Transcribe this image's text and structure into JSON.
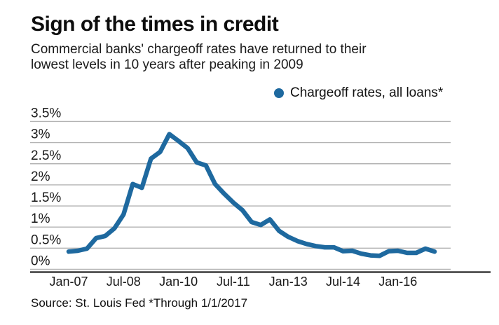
{
  "header": {
    "title": "Sign of the times in credit",
    "subtitle_line1": "Commercial banks' chargeoff rates have returned to their",
    "subtitle_line2": "lowest levels in 10 years after peaking in 2009"
  },
  "legend": {
    "label": "Chargeoff rates, all loans*",
    "marker_color": "#1e699f"
  },
  "source": "Source: St. Louis Fed *Through 1/1/2017",
  "chart_data": {
    "type": "line",
    "title": "Sign of the times in credit",
    "series_name": "Chargeoff rates, all loans*",
    "x": [
      "Jan-07",
      "Apr-07",
      "Jul-07",
      "Oct-07",
      "Jan-08",
      "Apr-08",
      "Jul-08",
      "Oct-08",
      "Jan-09",
      "Apr-09",
      "Jul-09",
      "Oct-09",
      "Jan-10",
      "Apr-10",
      "Jul-10",
      "Oct-10",
      "Jan-11",
      "Apr-11",
      "Jul-11",
      "Oct-11",
      "Jan-12",
      "Apr-12",
      "Jul-12",
      "Oct-12",
      "Jan-13",
      "Apr-13",
      "Jul-13",
      "Oct-13",
      "Jan-14",
      "Apr-14",
      "Jul-14",
      "Oct-14",
      "Jan-15",
      "Apr-15",
      "Jul-15",
      "Oct-15",
      "Jan-16",
      "Apr-16",
      "Jul-16",
      "Oct-16",
      "Jan-17"
    ],
    "values": [
      0.42,
      0.44,
      0.49,
      0.74,
      0.79,
      0.97,
      1.3,
      2.02,
      1.93,
      2.62,
      2.78,
      3.2,
      3.04,
      2.87,
      2.53,
      2.46,
      2.02,
      1.79,
      1.58,
      1.4,
      1.12,
      1.05,
      1.18,
      0.91,
      0.77,
      0.67,
      0.6,
      0.55,
      0.52,
      0.52,
      0.43,
      0.44,
      0.37,
      0.33,
      0.32,
      0.43,
      0.44,
      0.39,
      0.39,
      0.49,
      0.42
    ],
    "unit": "%",
    "x_tick_labels": [
      "Jan-07",
      "Jul-08",
      "Jan-10",
      "Jul-11",
      "Jan-13",
      "Jul-14",
      "Jan-16"
    ],
    "x_tick_indices": [
      0,
      6,
      12,
      18,
      24,
      30,
      36
    ],
    "y_tick_labels": [
      "3.5%",
      "3%",
      "2.5%",
      "2%",
      "1.5%",
      "1%",
      "0.5%",
      "0%"
    ],
    "y_tick_values": [
      3.5,
      3,
      2.5,
      2,
      1.5,
      1,
      0.5,
      0
    ],
    "ylim": [
      0,
      3.5
    ],
    "grid": "horizontal",
    "legend_position": "top-right",
    "line_color": "#1e699f",
    "grid_color": "#b3b3b3",
    "axis_color": "#3c3c3c"
  }
}
